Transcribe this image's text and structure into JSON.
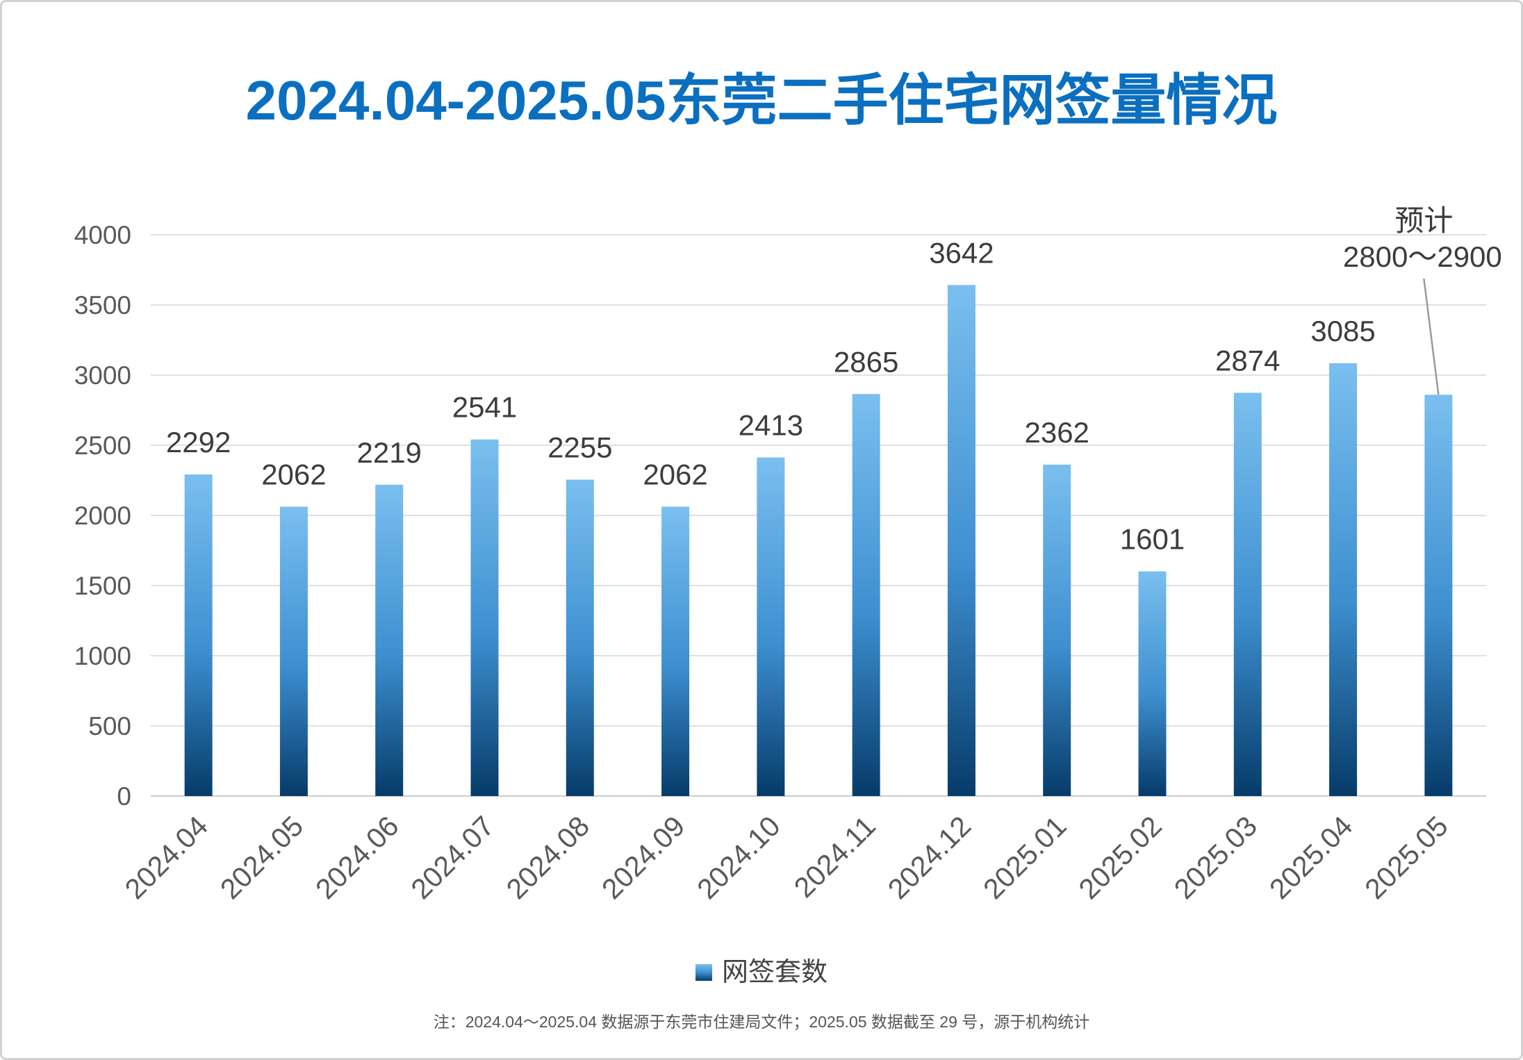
{
  "chart_data": {
    "type": "bar",
    "title": "2024.04-2025.05东莞二手住宅网签量情况",
    "categories": [
      "2024.04",
      "2024.05",
      "2024.06",
      "2024.07",
      "2024.08",
      "2024.09",
      "2024.10",
      "2024.11",
      "2024.12",
      "2025.01",
      "2025.02",
      "2025.03",
      "2025.04",
      "2025.05"
    ],
    "series": [
      {
        "name": "网签套数",
        "values": [
          2292,
          2062,
          2219,
          2541,
          2255,
          2062,
          2413,
          2865,
          3642,
          2362,
          1601,
          2874,
          3085,
          2860
        ]
      }
    ],
    "ylim": [
      0,
      4000
    ],
    "yticks": [
      0,
      500,
      1000,
      1500,
      2000,
      2500,
      3000,
      3500,
      4000
    ],
    "grid": true,
    "legend": "bottom",
    "annotation": {
      "x": "2025.05",
      "text": [
        "预计",
        "2800～2900"
      ]
    }
  },
  "footnote": "注：2024.04～2025.04 数据源于东莞市住建局文件；2025.05 数据截至 29 号，源于机构统计",
  "colors": {
    "title": "#0b6fc0",
    "bar_top": "#7abfef",
    "bar_mid": "#3d8fd0",
    "bar_bottom": "#063b69",
    "grid": "#e0e0e0",
    "axis": "#cccccc",
    "tick_text": "#595959",
    "label_text": "#3c3c3c",
    "annotation_line": "#9a9a9a"
  }
}
